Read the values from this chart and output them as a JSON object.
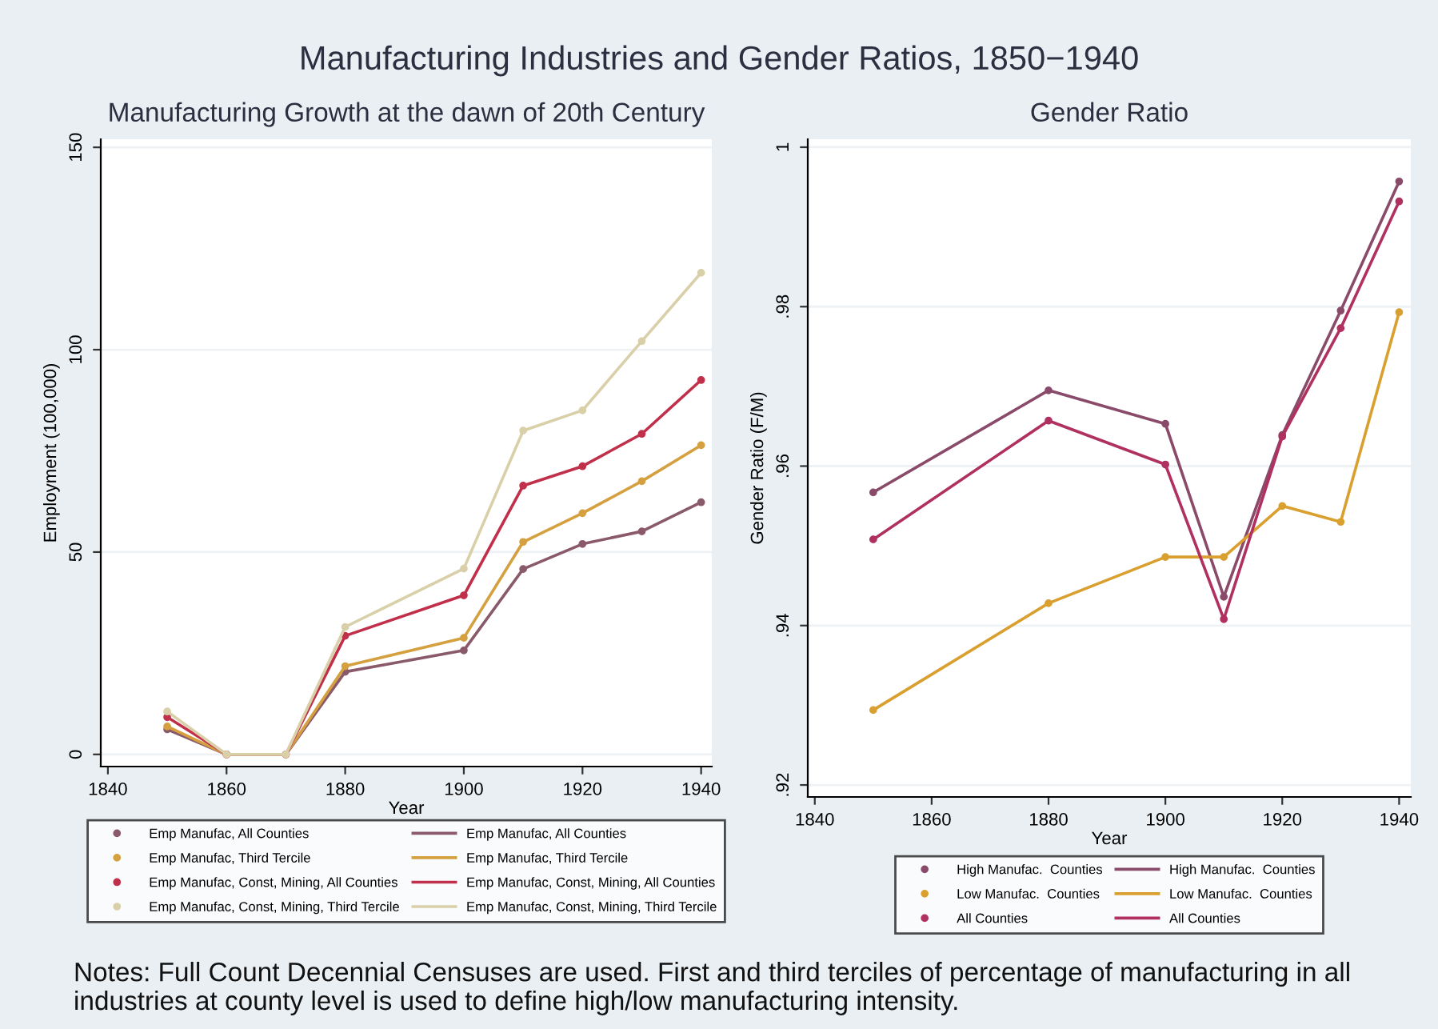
{
  "chart_data": [
    {
      "type": "line",
      "title": "Manufacturing Growth at the dawn of 20th Century",
      "xlabel": "Year",
      "ylabel": "Employment (100,000)",
      "annotations": [
        "Manufacturing Industries and Gender Ratios, 1850−1940",
        "Notes: Full Count Decennial Censuses are used. First and third terciles of percentage of manufacturing in all industries at county level is used to define high/low manufacturing intensity."
      ],
      "x": [
        1850,
        1860,
        1870,
        1880,
        1900,
        1910,
        1920,
        1930,
        1940
      ],
      "series": [
        {
          "name": "Emp Manufac, All Counties",
          "color": "#8a5a6a",
          "values": [
            6.2,
            0,
            0,
            20.4,
            25.7,
            45.8,
            52,
            55.1,
            62.3
          ]
        },
        {
          "name": "Emp Manufac, Third Tercile",
          "color": "#d4a040",
          "values": [
            6.9,
            0,
            0,
            21.8,
            28.8,
            52.5,
            59.6,
            67.5,
            76.4
          ]
        },
        {
          "name": "Emp Manufac, Const, Mining, All Counties",
          "color": "#c0304a",
          "values": [
            9.2,
            0,
            0,
            29.3,
            39.3,
            66.4,
            71.2,
            79.2,
            92.5
          ]
        },
        {
          "name": "Emp Manufac, Const, Mining, Third Tercile",
          "color": "#d9cfa8",
          "values": [
            10.6,
            0,
            0,
            31.5,
            45.9,
            80,
            85,
            102.1,
            119
          ]
        }
      ],
      "xlim": [
        1838.8,
        1941.8
      ],
      "ylim": [
        -3,
        152
      ],
      "xticks": [
        1840,
        1860,
        1880,
        1900,
        1920,
        1940
      ],
      "yticks": [
        0,
        50,
        100,
        150
      ],
      "grid": "y",
      "legend": "bottom",
      "marker": "circle",
      "line_style": "solid"
    },
    {
      "type": "line",
      "title": "Gender Ratio",
      "xlabel": "Year",
      "ylabel": "Gender Ratio (F/M)",
      "x": [
        1850,
        1880,
        1900,
        1910,
        1920,
        1930,
        1940
      ],
      "series": [
        {
          "name": "High Manufac.  Counties",
          "color": "#8a4a6a",
          "values": [
            0.9567,
            0.9695,
            0.9653,
            0.9436,
            0.9639,
            0.9795,
            0.9957
          ]
        },
        {
          "name": "Low Manufac.  Counties",
          "color": "#d9a030",
          "values": [
            0.9294,
            0.9428,
            0.9486,
            0.9486,
            0.955,
            0.953,
            0.9793
          ]
        },
        {
          "name": "All Counties",
          "color": "#b03060",
          "values": [
            0.9508,
            0.9657,
            0.9602,
            0.9408,
            0.9637,
            0.9773,
            0.9932
          ]
        }
      ],
      "xlim": [
        1838.8,
        1942
      ],
      "ylim": [
        0.9185,
        1.001
      ],
      "xticks": [
        1840,
        1860,
        1880,
        1900,
        1920,
        1940
      ],
      "yticks": [
        {
          "value": 0.92,
          "label": ".92"
        },
        {
          "value": 0.94,
          "label": ".94"
        },
        {
          "value": 0.96,
          "label": ".96"
        },
        {
          "value": 0.98,
          "label": ".98"
        },
        1
      ],
      "grid": "y",
      "legend": "bottom",
      "marker": "circle",
      "line_style": "solid"
    }
  ]
}
